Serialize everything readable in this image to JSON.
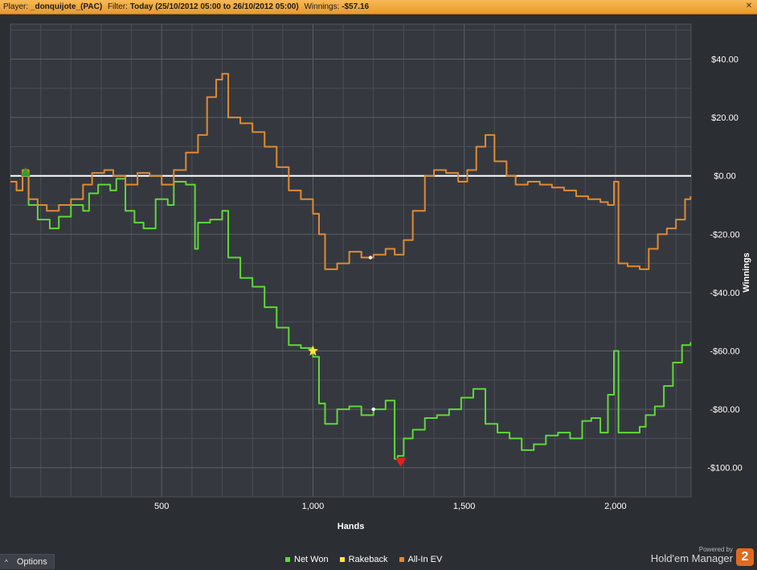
{
  "header": {
    "player_label": "Player:",
    "player_value": "_donquijote_(PAC)",
    "filter_label": "Filter:",
    "filter_value": "Today (25/10/2012 05:00 to 26/10/2012 05:00)",
    "winnings_label": "Winnings:",
    "winnings_value": "-$57.16"
  },
  "footer": {
    "options_label": "Options",
    "powered_label": "Powered by",
    "brand_label": "Hold'em Manager",
    "logo_text": "2"
  },
  "colors": {
    "net_won": "#5fd83b",
    "rakeback": "#ffe63a",
    "all_in_ev": "#e08a34",
    "zero_line": "#ffffff",
    "grid": "#4a4e55",
    "header_bg": "#f2ab43"
  },
  "chart_data": {
    "type": "line",
    "xlabel": "Hands",
    "ylabel": "Winnings",
    "xlim": [
      0,
      2250
    ],
    "ylim": [
      -110,
      52
    ],
    "x_ticks": [
      500,
      1000,
      1500,
      2000
    ],
    "x_tick_labels": [
      "500",
      "1,000",
      "1,500",
      "2,000"
    ],
    "y_ticks": [
      40,
      20,
      0,
      -20,
      -40,
      -60,
      -80,
      -100
    ],
    "y_tick_labels": [
      "$40.00",
      "$20.00",
      "$0.00",
      "-$20.00",
      "-$40.00",
      "-$60.00",
      "-$80.00",
      "-$100.00"
    ],
    "grid": true,
    "legend_position": "bottom-center",
    "series": [
      {
        "name": "Net Won",
        "color": "#5fd83b",
        "x": [
          0,
          20,
          40,
          60,
          90,
          130,
          160,
          200,
          240,
          260,
          290,
          330,
          350,
          380,
          410,
          440,
          480,
          520,
          540,
          580,
          610,
          620,
          660,
          700,
          720,
          760,
          800,
          840,
          880,
          920,
          960,
          1000,
          1020,
          1040,
          1080,
          1120,
          1160,
          1200,
          1240,
          1270,
          1280,
          1300,
          1330,
          1370,
          1410,
          1450,
          1490,
          1530,
          1570,
          1610,
          1650,
          1690,
          1730,
          1770,
          1810,
          1850,
          1890,
          1920,
          1950,
          1975,
          1995,
          2010,
          2050,
          2080,
          2100,
          2130,
          2160,
          2190,
          2220,
          2248
        ],
        "y": [
          -2,
          -5,
          0,
          -10,
          -15,
          -18,
          -14,
          -10,
          -12,
          -6,
          -3,
          -5,
          -1,
          -12,
          -16,
          -18,
          -8,
          -10,
          -2,
          -3,
          -25,
          -16,
          -15,
          -12,
          -28,
          -35,
          -38,
          -45,
          -52,
          -58,
          -59,
          -62,
          -78,
          -85,
          -80,
          -79,
          -82,
          -80,
          -77,
          -97,
          -96,
          -90,
          -87,
          -83,
          -82,
          -80,
          -76,
          -73,
          -85,
          -88,
          -90,
          -94,
          -92,
          -89,
          -88,
          -90,
          -84,
          -83,
          -88,
          -75,
          -60,
          -88,
          -88,
          -86,
          -82,
          -79,
          -72,
          -64,
          -58,
          -57
        ]
      },
      {
        "name": "Rakeback",
        "color": "#ffe63a",
        "x": [
          1000
        ],
        "y": [
          -60
        ]
      },
      {
        "name": "All-In EV",
        "color": "#e08a34",
        "x": [
          0,
          20,
          40,
          60,
          90,
          120,
          160,
          200,
          240,
          270,
          310,
          340,
          380,
          420,
          460,
          500,
          540,
          580,
          620,
          650,
          680,
          700,
          720,
          760,
          800,
          840,
          880,
          920,
          960,
          1000,
          1020,
          1040,
          1080,
          1120,
          1160,
          1200,
          1240,
          1270,
          1300,
          1330,
          1370,
          1400,
          1440,
          1480,
          1510,
          1540,
          1570,
          1600,
          1640,
          1670,
          1710,
          1750,
          1790,
          1830,
          1870,
          1910,
          1950,
          1975,
          1995,
          2010,
          2040,
          2080,
          2110,
          2140,
          2170,
          2200,
          2230,
          2248
        ],
        "y": [
          -2,
          -5,
          2,
          -8,
          -10,
          -12,
          -10,
          -8,
          -3,
          1,
          2,
          0,
          -3,
          1,
          0,
          -3,
          2,
          8,
          14,
          27,
          33,
          35,
          20,
          18,
          15,
          10,
          3,
          -5,
          -8,
          -13,
          -20,
          -32,
          -30,
          -26,
          -28,
          -27,
          -25,
          -27,
          -22,
          -12,
          0,
          2,
          1,
          -2,
          2,
          10,
          14,
          5,
          0,
          -3,
          -2,
          -3,
          -4,
          -5,
          -7,
          -8,
          -9,
          -10,
          -2,
          -30,
          -31,
          -32,
          -25,
          -20,
          -18,
          -15,
          -8,
          -7
        ]
      }
    ],
    "markers": [
      {
        "label": "start",
        "shape": "triangle-up",
        "color": "#2fa02f",
        "x": 50,
        "y": 1
      },
      {
        "label": "max-loss",
        "shape": "triangle-down",
        "color": "#e02020",
        "x": 1290,
        "y": -98
      },
      {
        "label": "rakeback-star",
        "shape": "star",
        "color": "#ffe63a",
        "x": 1000,
        "y": -60
      },
      {
        "label": "all-in-ev-point",
        "shape": "dot",
        "color": "#ffffff",
        "x": 1190,
        "y": -28
      },
      {
        "label": "net-won-point",
        "shape": "dot",
        "color": "#ffffff",
        "x": 1200,
        "y": -80
      }
    ]
  }
}
